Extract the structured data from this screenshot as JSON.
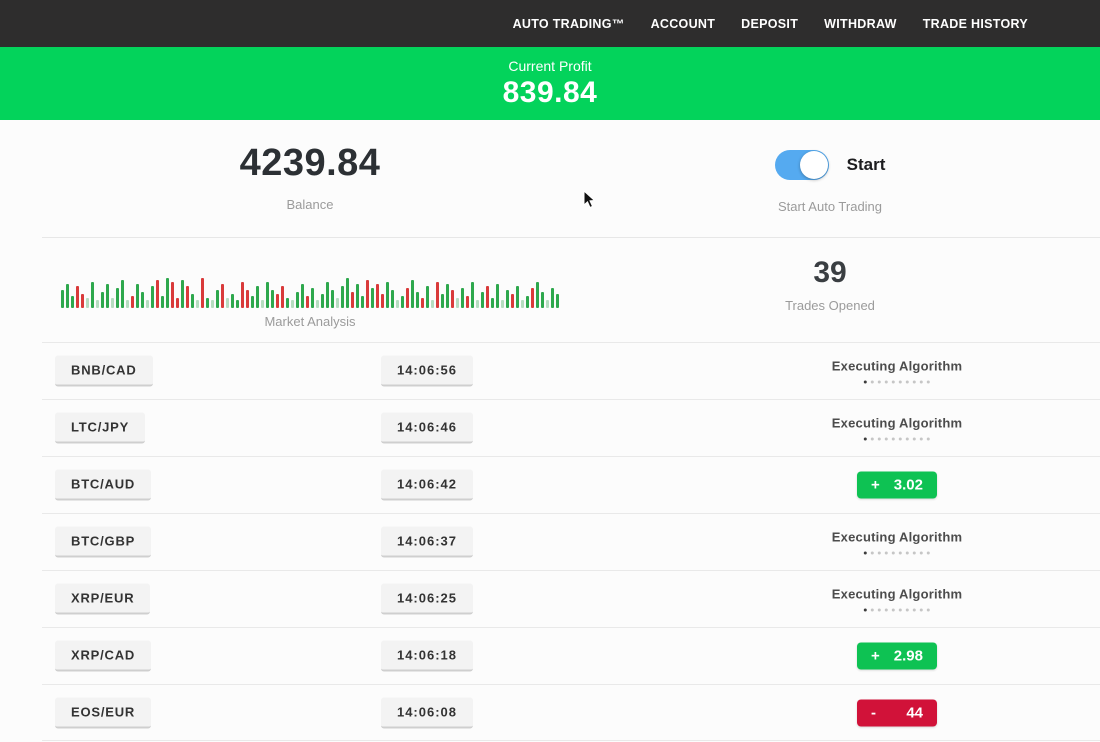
{
  "nav": {
    "items": [
      "AUTO TRADING™",
      "ACCOUNT",
      "DEPOSIT",
      "WITHDRAW",
      "TRADE HISTORY"
    ]
  },
  "profit_banner": {
    "label": "Current Profit",
    "value": "839.84",
    "background": "#03d35b"
  },
  "account": {
    "balance": "4239.84",
    "balance_label": "Balance"
  },
  "auto_trading": {
    "toggle_state": "on",
    "toggle_label": "Start",
    "caption": "Start Auto Trading",
    "toggle_color": "#55aaf0"
  },
  "market_analysis": {
    "label": "Market Analysis",
    "bar_colors": {
      "g": "#2ea84d",
      "r": "#d93a3a",
      "G": "#b6dcc0",
      "R": "#eccfd2"
    },
    "bars": [
      [
        "g",
        18
      ],
      [
        "g",
        24
      ],
      [
        "g",
        12
      ],
      [
        "r",
        22
      ],
      [
        "r",
        14
      ],
      [
        "G",
        10
      ],
      [
        "g",
        26
      ],
      [
        "G",
        8
      ],
      [
        "g",
        16
      ],
      [
        "g",
        24
      ],
      [
        "G",
        10
      ],
      [
        "g",
        20
      ],
      [
        "g",
        28
      ],
      [
        "G",
        8
      ],
      [
        "r",
        12
      ],
      [
        "g",
        24
      ],
      [
        "g",
        16
      ],
      [
        "G",
        8
      ],
      [
        "g",
        22
      ],
      [
        "r",
        28
      ],
      [
        "g",
        12
      ],
      [
        "g",
        30
      ],
      [
        "r",
        26
      ],
      [
        "r",
        10
      ],
      [
        "g",
        28
      ],
      [
        "r",
        22
      ],
      [
        "g",
        14
      ],
      [
        "G",
        8
      ],
      [
        "r",
        30
      ],
      [
        "g",
        10
      ],
      [
        "G",
        8
      ],
      [
        "g",
        18
      ],
      [
        "r",
        24
      ],
      [
        "G",
        10
      ],
      [
        "g",
        14
      ],
      [
        "g",
        8
      ],
      [
        "r",
        26
      ],
      [
        "r",
        18
      ],
      [
        "g",
        12
      ],
      [
        "g",
        22
      ],
      [
        "G",
        8
      ],
      [
        "g",
        26
      ],
      [
        "g",
        18
      ],
      [
        "r",
        14
      ],
      [
        "r",
        22
      ],
      [
        "g",
        10
      ],
      [
        "G",
        8
      ],
      [
        "g",
        16
      ],
      [
        "g",
        24
      ],
      [
        "r",
        12
      ],
      [
        "g",
        20
      ],
      [
        "G",
        8
      ],
      [
        "g",
        14
      ],
      [
        "g",
        26
      ],
      [
        "g",
        18
      ],
      [
        "G",
        10
      ],
      [
        "g",
        22
      ],
      [
        "g",
        30
      ],
      [
        "r",
        16
      ],
      [
        "g",
        24
      ],
      [
        "g",
        12
      ],
      [
        "r",
        28
      ],
      [
        "g",
        20
      ],
      [
        "r",
        24
      ],
      [
        "r",
        14
      ],
      [
        "g",
        26
      ],
      [
        "g",
        18
      ],
      [
        "G",
        8
      ],
      [
        "g",
        12
      ],
      [
        "r",
        20
      ],
      [
        "g",
        28
      ],
      [
        "g",
        16
      ],
      [
        "r",
        10
      ],
      [
        "g",
        22
      ],
      [
        "G",
        8
      ],
      [
        "r",
        26
      ],
      [
        "g",
        14
      ],
      [
        "g",
        24
      ],
      [
        "r",
        18
      ],
      [
        "G",
        10
      ],
      [
        "g",
        20
      ],
      [
        "r",
        12
      ],
      [
        "g",
        26
      ],
      [
        "G",
        8
      ],
      [
        "g",
        16
      ],
      [
        "r",
        22
      ],
      [
        "g",
        10
      ],
      [
        "g",
        24
      ],
      [
        "G",
        8
      ],
      [
        "g",
        18
      ],
      [
        "r",
        14
      ],
      [
        "g",
        22
      ],
      [
        "G",
        8
      ],
      [
        "g",
        12
      ],
      [
        "r",
        20
      ],
      [
        "g",
        26
      ],
      [
        "g",
        16
      ],
      [
        "G",
        8
      ],
      [
        "g",
        20
      ],
      [
        "g",
        14
      ]
    ]
  },
  "trades_opened": {
    "value": "39",
    "label": "Trades Opened"
  },
  "trades": {
    "executing_label": "Executing Algorithm",
    "dots_count": 10,
    "rows": [
      {
        "pair": "BNB/CAD",
        "time": "14:06:56",
        "status": {
          "type": "executing"
        }
      },
      {
        "pair": "LTC/JPY",
        "time": "14:06:46",
        "status": {
          "type": "executing"
        }
      },
      {
        "pair": "BTC/AUD",
        "time": "14:06:42",
        "status": {
          "type": "profit",
          "sign": "+",
          "value": "3.02",
          "tone": "green"
        }
      },
      {
        "pair": "BTC/GBP",
        "time": "14:06:37",
        "status": {
          "type": "executing"
        }
      },
      {
        "pair": "XRP/EUR",
        "time": "14:06:25",
        "status": {
          "type": "executing"
        }
      },
      {
        "pair": "XRP/CAD",
        "time": "14:06:18",
        "status": {
          "type": "profit",
          "sign": "+",
          "value": "2.98",
          "tone": "green"
        }
      },
      {
        "pair": "EOS/EUR",
        "time": "14:06:08",
        "status": {
          "type": "profit",
          "sign": "-",
          "value": "44",
          "tone": "red"
        }
      }
    ]
  },
  "colors": {
    "profit_green": "#0ec253",
    "loss_red": "#d11239",
    "nav_background": "#2e2d2d"
  }
}
